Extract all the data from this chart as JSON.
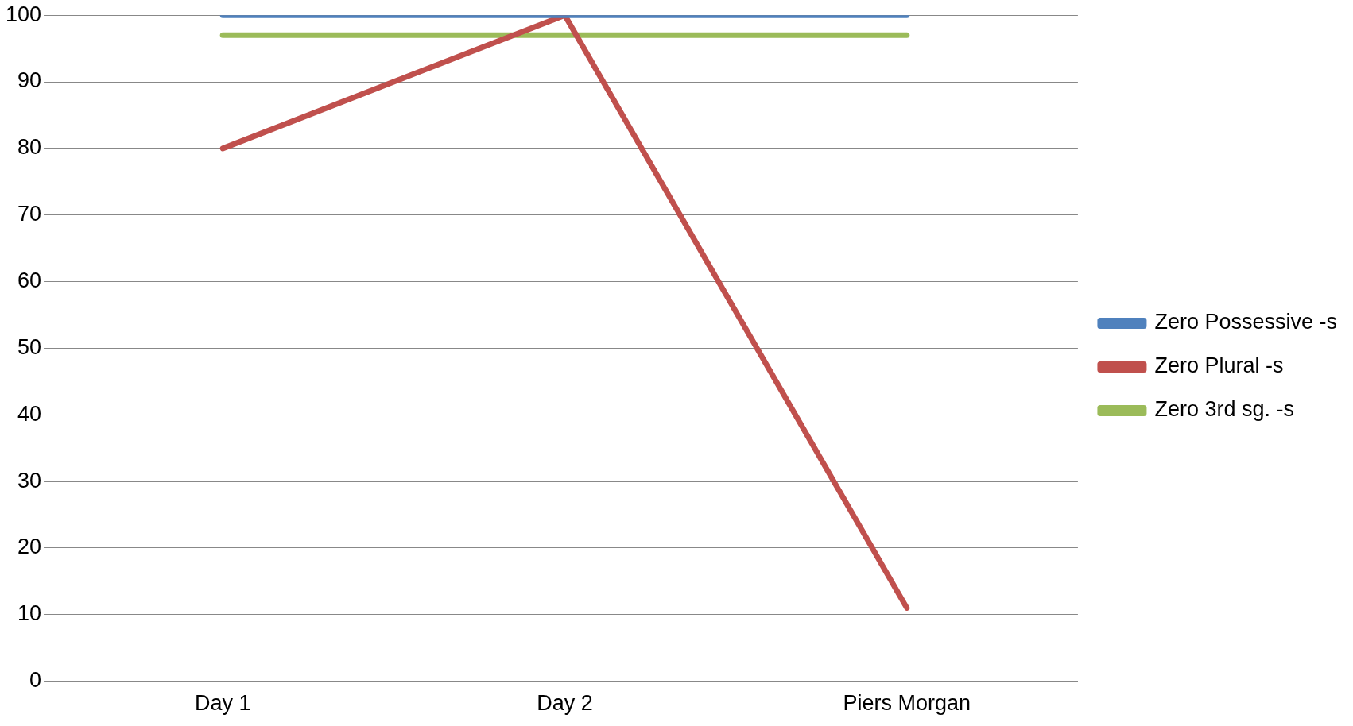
{
  "chart_data": {
    "type": "line",
    "categories": [
      "Day 1",
      "Day 2",
      "Piers Morgan"
    ],
    "series": [
      {
        "name": "Zero Possessive -s",
        "color": "#4f81bd",
        "values": [
          100,
          100,
          100
        ]
      },
      {
        "name": "Zero Plural -s",
        "color": "#c0504d",
        "values": [
          80,
          100,
          11
        ]
      },
      {
        "name": "Zero 3rd sg. -s",
        "color": "#9bbb59",
        "values": [
          97,
          97,
          97
        ]
      }
    ],
    "ylim": [
      0,
      100
    ],
    "yticks": [
      0,
      10,
      20,
      30,
      40,
      50,
      60,
      70,
      80,
      90,
      100
    ],
    "grid": "y",
    "legend": "right",
    "marker": "none",
    "line_style": "solid"
  }
}
